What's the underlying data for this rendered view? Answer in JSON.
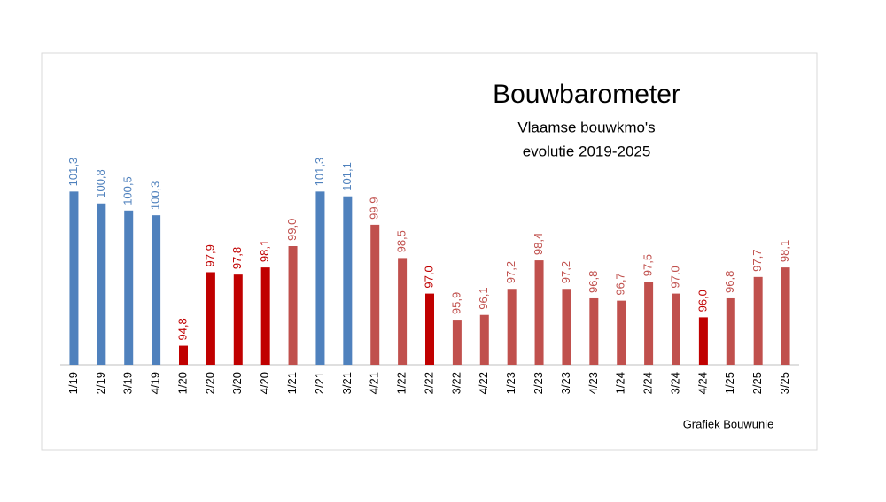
{
  "chart_data": {
    "type": "bar",
    "title": "Bouwbarometer",
    "subtitle": [
      "Vlaamse bouwkmo's",
      "evolutie 2019-2025"
    ],
    "source": "Grafiek Bouwunie",
    "categories": [
      "1/19",
      "2/19",
      "3/19",
      "4/19",
      "1/20",
      "2/20",
      "3/20",
      "4/20",
      "1/21",
      "2/21",
      "3/21",
      "4/21",
      "1/22",
      "2/22",
      "3/22",
      "4/22",
      "1/23",
      "2/23",
      "3/23",
      "4/23",
      "1/24",
      "2/24",
      "3/24",
      "4/24",
      "1/25",
      "2/25",
      "3/25"
    ],
    "values": [
      101.3,
      100.8,
      100.5,
      100.3,
      94.8,
      97.9,
      97.8,
      98.1,
      99.0,
      101.3,
      101.1,
      99.9,
      98.5,
      97.0,
      95.9,
      96.1,
      97.2,
      98.4,
      97.2,
      96.8,
      96.7,
      97.5,
      97.0,
      96.0,
      96.8,
      97.7,
      98.1
    ],
    "value_labels": [
      "101,3",
      "100,8",
      "100,5",
      "100,3",
      "94,8",
      "97,9",
      "97,8",
      "98,1",
      "99,0",
      "101,3",
      "101,1",
      "99,9",
      "98,5",
      "97,0",
      "95,9",
      "96,1",
      "97,2",
      "98,4",
      "97,2",
      "96,8",
      "96,7",
      "97,5",
      "97,0",
      "96,0",
      "96,8",
      "97,7",
      "98,1"
    ],
    "colors": [
      "#4f81bd",
      "#4f81bd",
      "#4f81bd",
      "#4f81bd",
      "#c00000",
      "#c00000",
      "#c00000",
      "#c00000",
      "#c0504d",
      "#4f81bd",
      "#4f81bd",
      "#c0504d",
      "#c0504d",
      "#c00000",
      "#c0504d",
      "#c0504d",
      "#c0504d",
      "#c0504d",
      "#c0504d",
      "#c0504d",
      "#c0504d",
      "#c0504d",
      "#c0504d",
      "#c00000",
      "#c0504d",
      "#c0504d",
      "#c0504d"
    ],
    "ylim": [
      94,
      102
    ]
  }
}
